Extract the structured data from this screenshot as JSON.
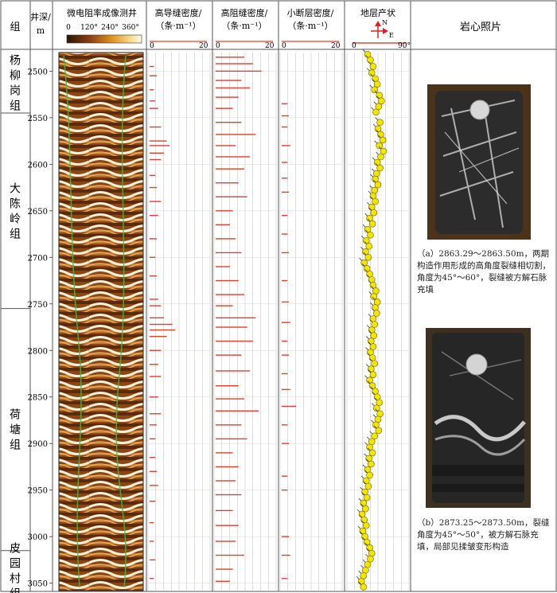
{
  "columns": {
    "group": "组",
    "depth": "井深/m",
    "image_log": "微电阻率成像测井",
    "high_conductive": "高导缝密度/（条·m⁻¹）",
    "high_resistive": "高阻缝密度/（条·m⁻¹）",
    "minor_fault": "小断层密度/（条·m⁻¹）",
    "dip": "地层产状",
    "photos": "岩心照片"
  },
  "column_lines": {
    "depth": [
      "井深/",
      "m"
    ],
    "high_conductive": [
      "高导缝密度/",
      "（条·m⁻¹）"
    ],
    "high_resistive": [
      "高阻缝密度/",
      "（条·m⁻¹）"
    ],
    "minor_fault": [
      "小断层密度/",
      "（条·m⁻¹）"
    ]
  },
  "image_scale": [
    "0",
    "120°",
    "240°",
    "360°"
  ],
  "density_scale": {
    "min": "0",
    "max": "20"
  },
  "dip_scale": {
    "min": "0",
    "max": "90°"
  },
  "compass": {
    "north": "N",
    "east": "E"
  },
  "formations": [
    {
      "name": "杨柳岗组",
      "chars": [
        "杨",
        "柳",
        "岗",
        "组"
      ],
      "top": 2480,
      "bottom": 2545
    },
    {
      "name": "大陈岭组",
      "chars": [
        "大",
        "陈",
        "岭",
        "组"
      ],
      "top": 2545,
      "bottom": 2755
    },
    {
      "name": "荷塘组",
      "chars": [
        "荷",
        "塘",
        "组"
      ],
      "top": 2755,
      "bottom": 3015
    },
    {
      "name": "皮园村组",
      "chars": [
        "皮",
        "园",
        "村",
        "组"
      ],
      "top": 3015,
      "bottom": 3058
    }
  ],
  "depth_ticks": [
    2500,
    2550,
    2600,
    2650,
    2700,
    2750,
    2800,
    2850,
    2900,
    2950,
    3000,
    3050
  ],
  "photos": [
    {
      "caption": "（a）2863.29～2863.50m，两期构造作用形成的高角度裂缝相切割，角度为45°～60°，裂缝被方解石脉充填",
      "caption_lines": [
        "（a）2863.29～2863.50m，两期",
        "构造作用形成的高角度裂缝相切割，",
        "角度为45°～60°，裂缝被方解石脉",
        "充填"
      ]
    },
    {
      "caption": "（b）2873.25～2873.50m，裂缝角度为45°～50°，被方解石脉充填，局部见揉皱变形构造",
      "caption_lines": [
        "（b）2873.25～2873.50m，裂缝",
        "角度为45°～50°，被方解石脉充",
        "填，局部见揉皱变形构造"
      ]
    }
  ],
  "colors": {
    "bar": "#e0402f",
    "dip_dot": "#f2e600",
    "grid": "#bdbdbd",
    "border": "#555555"
  },
  "chart_data": {
    "type": "well-log",
    "depth_range": [
      2480,
      3058
    ],
    "depth_unit": "m",
    "tracks": [
      {
        "name": "高导缝密度",
        "unit": "条·m⁻¹",
        "xlim": [
          0,
          20
        ],
        "values": [
          [
            2495,
            1.5
          ],
          [
            2505,
            2.5
          ],
          [
            2520,
            1.5
          ],
          [
            2532,
            2
          ],
          [
            2540,
            3
          ],
          [
            2560,
            4
          ],
          [
            2575,
            6
          ],
          [
            2580,
            7
          ],
          [
            2588,
            5
          ],
          [
            2595,
            4
          ],
          [
            2612,
            2
          ],
          [
            2625,
            2.5
          ],
          [
            2640,
            4
          ],
          [
            2655,
            3
          ],
          [
            2680,
            2.5
          ],
          [
            2700,
            2
          ],
          [
            2720,
            2.5
          ],
          [
            2745,
            3
          ],
          [
            2752,
            4
          ],
          [
            2765,
            5
          ],
          [
            2772,
            8
          ],
          [
            2778,
            9
          ],
          [
            2785,
            6
          ],
          [
            2800,
            4
          ],
          [
            2815,
            3
          ],
          [
            2828,
            4
          ],
          [
            2850,
            3
          ],
          [
            2868,
            4
          ],
          [
            2880,
            2.5
          ],
          [
            2895,
            2
          ],
          [
            2915,
            2
          ],
          [
            2930,
            2.5
          ],
          [
            2945,
            3
          ],
          [
            2962,
            2
          ],
          [
            2985,
            1.5
          ],
          [
            3005,
            1.5
          ],
          [
            3025,
            2
          ],
          [
            3045,
            1.5
          ]
        ]
      },
      {
        "name": "高阻缝密度",
        "unit": "条·m⁻¹",
        "xlim": [
          0,
          20
        ],
        "values": [
          [
            2485,
            10
          ],
          [
            2492,
            13
          ],
          [
            2500,
            16
          ],
          [
            2510,
            9
          ],
          [
            2518,
            12
          ],
          [
            2528,
            8
          ],
          [
            2540,
            6
          ],
          [
            2555,
            9
          ],
          [
            2568,
            14
          ],
          [
            2580,
            7
          ],
          [
            2592,
            12
          ],
          [
            2605,
            10
          ],
          [
            2620,
            8
          ],
          [
            2635,
            11
          ],
          [
            2650,
            6
          ],
          [
            2665,
            5
          ],
          [
            2680,
            7
          ],
          [
            2695,
            9
          ],
          [
            2710,
            5
          ],
          [
            2725,
            8
          ],
          [
            2740,
            10
          ],
          [
            2752,
            6
          ],
          [
            2765,
            14
          ],
          [
            2775,
            11
          ],
          [
            2790,
            13
          ],
          [
            2805,
            9
          ],
          [
            2822,
            12
          ],
          [
            2838,
            8
          ],
          [
            2852,
            10
          ],
          [
            2865,
            15
          ],
          [
            2880,
            9
          ],
          [
            2895,
            11
          ],
          [
            2910,
            6
          ],
          [
            2925,
            8
          ],
          [
            2940,
            7
          ],
          [
            2955,
            9
          ],
          [
            2972,
            6
          ],
          [
            2988,
            8
          ],
          [
            3005,
            7
          ],
          [
            3020,
            10
          ],
          [
            3035,
            6
          ],
          [
            3048,
            5
          ]
        ]
      },
      {
        "name": "小断层密度",
        "unit": "条·m⁻¹",
        "xlim": [
          0,
          20
        ],
        "values": [
          [
            2535,
            2
          ],
          [
            2548,
            2.5
          ],
          [
            2560,
            2
          ],
          [
            2580,
            3
          ],
          [
            2598,
            2
          ],
          [
            2615,
            2
          ],
          [
            2630,
            2.5
          ],
          [
            2655,
            2
          ],
          [
            2675,
            2
          ],
          [
            2695,
            2.5
          ],
          [
            2725,
            2
          ],
          [
            2748,
            2.5
          ],
          [
            2770,
            3
          ],
          [
            2790,
            2
          ],
          [
            2805,
            2.5
          ],
          [
            2825,
            2
          ],
          [
            2842,
            3
          ],
          [
            2860,
            5
          ],
          [
            2880,
            2
          ],
          [
            2900,
            2.5
          ],
          [
            2935,
            2
          ],
          [
            2950,
            2
          ],
          [
            3000,
            2.5
          ],
          [
            3020,
            3
          ],
          [
            3045,
            2
          ]
        ]
      },
      {
        "name": "地层产状",
        "unit": "°",
        "xlim": [
          0,
          90
        ],
        "values": [
          [
            2482,
            30
          ],
          [
            2488,
            34
          ],
          [
            2495,
            38
          ],
          [
            2502,
            36
          ],
          [
            2508,
            41
          ],
          [
            2514,
            44
          ],
          [
            2520,
            40
          ],
          [
            2526,
            47
          ],
          [
            2532,
            50
          ],
          [
            2538,
            46
          ],
          [
            2544,
            42
          ],
          [
            2555,
            48
          ],
          [
            2562,
            45
          ],
          [
            2568,
            49
          ],
          [
            2574,
            52
          ],
          [
            2580,
            47
          ],
          [
            2586,
            53
          ],
          [
            2592,
            49
          ],
          [
            2598,
            44
          ],
          [
            2604,
            48
          ],
          [
            2610,
            43
          ],
          [
            2616,
            41
          ],
          [
            2622,
            45
          ],
          [
            2628,
            40
          ],
          [
            2634,
            38
          ],
          [
            2640,
            41
          ],
          [
            2646,
            36
          ],
          [
            2652,
            39
          ],
          [
            2658,
            33
          ],
          [
            2664,
            37
          ],
          [
            2670,
            30
          ],
          [
            2676,
            34
          ],
          [
            2682,
            28
          ],
          [
            2688,
            32
          ],
          [
            2694,
            27
          ],
          [
            2700,
            31
          ],
          [
            2706,
            25
          ],
          [
            2712,
            29
          ],
          [
            2718,
            33
          ],
          [
            2724,
            36
          ],
          [
            2730,
            38
          ],
          [
            2736,
            42
          ],
          [
            2742,
            39
          ],
          [
            2748,
            44
          ],
          [
            2754,
            41
          ],
          [
            2760,
            43
          ],
          [
            2766,
            38
          ],
          [
            2772,
            40
          ],
          [
            2778,
            36
          ],
          [
            2784,
            39
          ],
          [
            2790,
            35
          ],
          [
            2796,
            38
          ],
          [
            2802,
            34
          ],
          [
            2808,
            37
          ],
          [
            2814,
            40
          ],
          [
            2820,
            35
          ],
          [
            2826,
            38
          ],
          [
            2832,
            33
          ],
          [
            2838,
            37
          ],
          [
            2844,
            41
          ],
          [
            2850,
            44
          ],
          [
            2856,
            47
          ],
          [
            2862,
            43
          ],
          [
            2868,
            48
          ],
          [
            2874,
            45
          ],
          [
            2880,
            42
          ],
          [
            2886,
            46
          ],
          [
            2892,
            40
          ],
          [
            2898,
            36
          ],
          [
            2904,
            33
          ],
          [
            2910,
            37
          ],
          [
            2916,
            32
          ],
          [
            2922,
            35
          ],
          [
            2928,
            30
          ],
          [
            2934,
            33
          ],
          [
            2940,
            28
          ],
          [
            2946,
            31
          ],
          [
            2952,
            26
          ],
          [
            2958,
            29
          ],
          [
            2964,
            24
          ],
          [
            2970,
            27
          ],
          [
            2976,
            22
          ],
          [
            2982,
            25
          ],
          [
            2988,
            28
          ],
          [
            2994,
            23
          ],
          [
            3000,
            26
          ],
          [
            3006,
            29
          ],
          [
            3012,
            33
          ],
          [
            3018,
            36
          ],
          [
            3024,
            34
          ],
          [
            3030,
            30
          ],
          [
            3036,
            27
          ],
          [
            3042,
            24
          ],
          [
            3048,
            21
          ],
          [
            3054,
            24
          ]
        ]
      }
    ]
  }
}
